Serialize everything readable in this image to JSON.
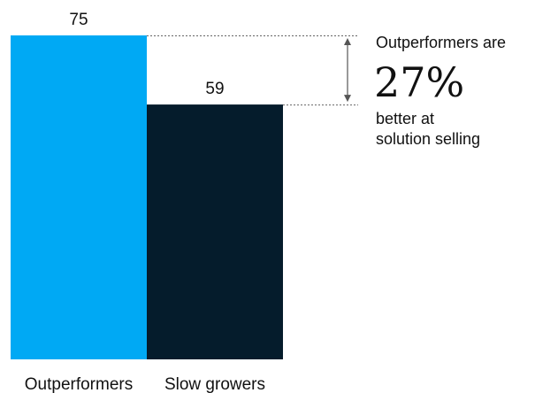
{
  "chart_data": {
    "type": "bar",
    "categories": [
      "Outperformers",
      "Slow growers"
    ],
    "values": [
      75,
      59
    ],
    "ylim": [
      0,
      75
    ],
    "grid": false,
    "legend": "none",
    "colors": [
      "#00a9f4",
      "#051c2c"
    ],
    "annotation": {
      "line1": "Outperformers are",
      "big": "27%",
      "line2": "better at",
      "line3": "solution selling"
    }
  }
}
